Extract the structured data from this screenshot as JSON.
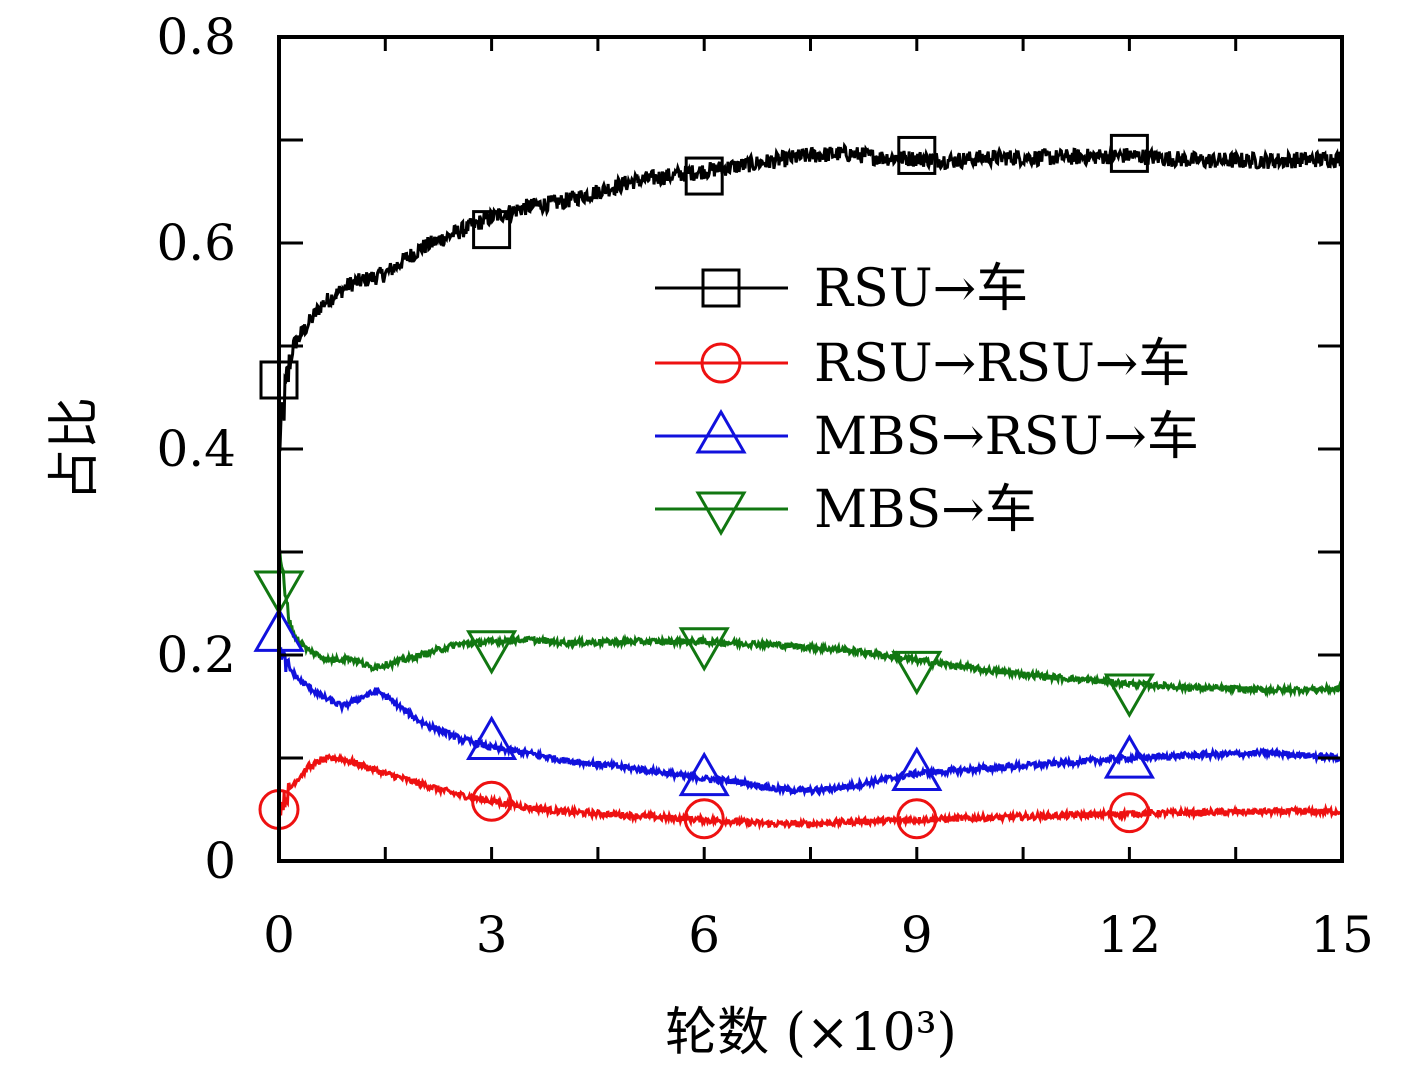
{
  "chart_data": {
    "type": "line",
    "title": "",
    "xlabel": "轮数 (×10³)",
    "ylabel": "占比",
    "xlim": [
      0,
      15
    ],
    "ylim": [
      0,
      0.8
    ],
    "xticks": [
      0,
      3,
      6,
      9,
      12,
      15
    ],
    "xtick_labels": [
      "0",
      "3",
      "6",
      "9",
      "12",
      "15"
    ],
    "yticks": [
      0,
      0.2,
      0.4,
      0.6,
      0.8
    ],
    "ytick_labels": [
      "0",
      "0.2",
      "0.4",
      "0.6",
      "0.8"
    ],
    "grid": false,
    "legend_position": "center-right",
    "series": [
      {
        "name": "RSU→车",
        "color": "#000000",
        "marker": "square",
        "x": [
          0,
          0.1,
          0.2,
          0.4,
          0.6,
          0.8,
          1.0,
          1.5,
          2.0,
          2.5,
          3.0,
          3.5,
          4.0,
          4.5,
          5.0,
          5.5,
          6.0,
          6.5,
          7.0,
          7.5,
          8.0,
          8.5,
          9.0,
          9.5,
          10.0,
          11.0,
          12.0,
          13.0,
          14.0,
          15.0
        ],
        "y": [
          0.4,
          0.46,
          0.5,
          0.52,
          0.54,
          0.55,
          0.56,
          0.57,
          0.595,
          0.61,
          0.625,
          0.635,
          0.64,
          0.65,
          0.66,
          0.665,
          0.67,
          0.675,
          0.68,
          0.685,
          0.687,
          0.683,
          0.682,
          0.68,
          0.683,
          0.683,
          0.685,
          0.68,
          0.68,
          0.682
        ],
        "marker_x": [
          0,
          3,
          6,
          9,
          12
        ],
        "marker_y": [
          0.467,
          0.613,
          0.665,
          0.685,
          0.687
        ]
      },
      {
        "name": "RSU→RSU→车",
        "color": "#ee1111",
        "marker": "circle",
        "x": [
          0,
          0.2,
          0.4,
          0.6,
          0.8,
          1.0,
          1.5,
          2.0,
          2.5,
          3.0,
          3.5,
          4.0,
          5.0,
          6.0,
          6.5,
          7.0,
          7.5,
          8.0,
          9.0,
          10.0,
          11.0,
          12.0,
          13.0,
          14.0,
          15.0
        ],
        "y": [
          0.05,
          0.075,
          0.09,
          0.098,
          0.1,
          0.097,
          0.085,
          0.075,
          0.065,
          0.058,
          0.052,
          0.048,
          0.044,
          0.04,
          0.038,
          0.036,
          0.036,
          0.038,
          0.04,
          0.042,
          0.044,
          0.046,
          0.047,
          0.048,
          0.048
        ],
        "marker_x": [
          0,
          3,
          6,
          9,
          12
        ],
        "marker_y": [
          0.05,
          0.058,
          0.041,
          0.041,
          0.047
        ]
      },
      {
        "name": "MBS→RSU→车",
        "color": "#1111dd",
        "marker": "triangle-up",
        "x": [
          0,
          0.1,
          0.3,
          0.6,
          0.9,
          1.2,
          1.4,
          1.6,
          2.0,
          2.5,
          3.0,
          3.5,
          4.0,
          5.0,
          6.0,
          6.5,
          7.0,
          7.5,
          8.0,
          9.0,
          10.0,
          11.0,
          12.0,
          13.0,
          14.0,
          15.0
        ],
        "y": [
          0.21,
          0.19,
          0.175,
          0.16,
          0.15,
          0.16,
          0.165,
          0.155,
          0.135,
          0.12,
          0.11,
          0.105,
          0.098,
          0.09,
          0.08,
          0.077,
          0.07,
          0.068,
          0.072,
          0.085,
          0.09,
          0.095,
          0.1,
          0.103,
          0.105,
          0.1
        ],
        "marker_x": [
          0,
          3,
          6,
          9,
          12
        ],
        "marker_y": [
          0.22,
          0.115,
          0.08,
          0.085,
          0.097
        ]
      },
      {
        "name": "MBS→车",
        "color": "#117711",
        "marker": "triangle-down",
        "x": [
          0,
          0.05,
          0.1,
          0.2,
          0.4,
          0.7,
          1.0,
          1.3,
          1.6,
          2.0,
          2.5,
          3.0,
          3.5,
          4.0,
          5.0,
          6.0,
          7.0,
          8.0,
          9.0,
          10.0,
          11.0,
          12.0,
          13.0,
          14.0,
          15.0
        ],
        "y": [
          0.31,
          0.28,
          0.25,
          0.22,
          0.205,
          0.195,
          0.197,
          0.188,
          0.192,
          0.2,
          0.21,
          0.213,
          0.215,
          0.212,
          0.213,
          0.213,
          0.21,
          0.205,
          0.195,
          0.185,
          0.178,
          0.172,
          0.168,
          0.166,
          0.167
        ],
        "marker_x": [
          0,
          3,
          6,
          9,
          12
        ],
        "marker_y": [
          0.265,
          0.207,
          0.21,
          0.187,
          0.165
        ]
      }
    ]
  }
}
